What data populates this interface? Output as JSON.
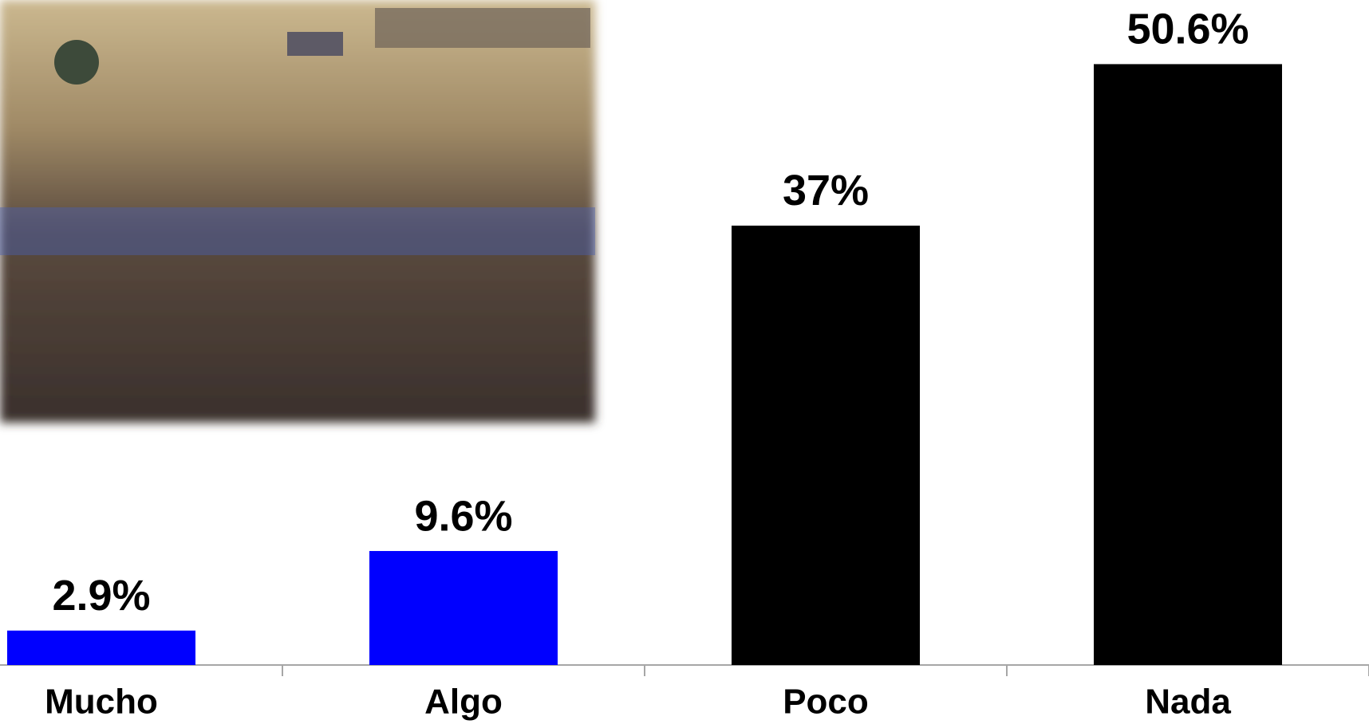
{
  "chart_data": {
    "type": "bar",
    "categories": [
      "Mucho",
      "Algo",
      "Poco",
      "Nada"
    ],
    "values": [
      2.9,
      9.6,
      37,
      50.6
    ],
    "value_labels": [
      "2.9%",
      "9.6%",
      "37%",
      "50.6%"
    ],
    "colors": [
      "#0000ff",
      "#0000ff",
      "#000000",
      "#000000"
    ],
    "ylim": [
      0,
      56
    ]
  }
}
